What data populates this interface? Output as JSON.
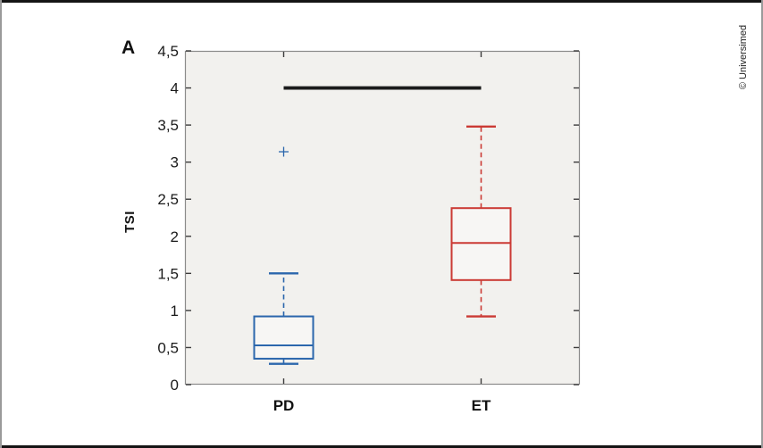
{
  "panel_label": "A",
  "watermark": "© Universimed",
  "chart_data": {
    "type": "boxplot",
    "title": "",
    "ylabel": "TSI",
    "xlabel": "",
    "categories": [
      "PD",
      "ET"
    ],
    "ylim": [
      0,
      4.5
    ],
    "ytick_step": 0.5,
    "ytick_labels": [
      "0",
      "0,5",
      "1",
      "1,5",
      "2",
      "2,5",
      "3",
      "3,5",
      "4",
      "4,5"
    ],
    "grid": false,
    "legend": "none",
    "plot_bg": "#f2f1ee",
    "box_fill": "#f7f6f4",
    "axis_border_color": "#8a8a8a",
    "tick_color": "#3c3c3c",
    "tick_label_color": "#1a1a1a",
    "series": [
      {
        "name": "PD",
        "color": "#2b66ac",
        "whisker_low": 0.28,
        "q1": 0.35,
        "median": 0.53,
        "q3": 0.92,
        "whisker_high": 1.5,
        "outliers": [
          3.14
        ]
      },
      {
        "name": "ET",
        "color": "#cb3a34",
        "whisker_low": 0.92,
        "q1": 1.41,
        "median": 1.91,
        "q3": 2.38,
        "whisker_high": 3.48,
        "outliers": []
      }
    ],
    "significance_bar": {
      "value": 4.0,
      "between": [
        "PD",
        "ET"
      ],
      "color": "#1b1b1b"
    }
  }
}
